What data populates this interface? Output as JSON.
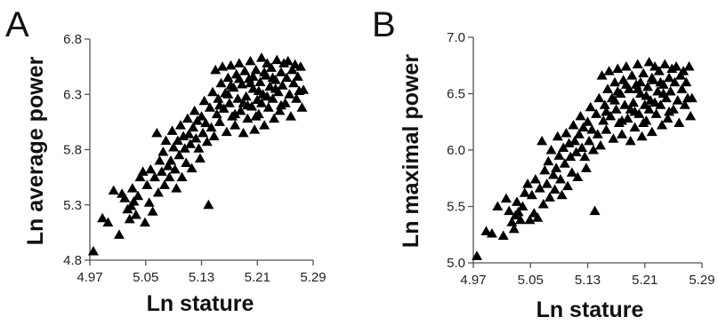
{
  "chart_data": [
    {
      "type": "scatter",
      "panel_label": "A",
      "title": "",
      "xlabel": "Ln stature",
      "ylabel": "Ln average power",
      "xlim": [
        4.97,
        5.29
      ],
      "ylim": [
        4.8,
        6.8
      ],
      "xticks": [
        "4.97",
        "5.05",
        "5.13",
        "5.21",
        "5.29"
      ],
      "yticks": [
        "4.8",
        "5.3",
        "5.8",
        "6.3",
        "6.8"
      ],
      "marker": "triangle",
      "color": "#000000",
      "grid": false,
      "points": [
        [
          4.975,
          4.88
        ],
        [
          4.988,
          5.18
        ],
        [
          4.996,
          5.14
        ],
        [
          5.004,
          5.43
        ],
        [
          5.012,
          5.03
        ],
        [
          5.016,
          5.4
        ],
        [
          5.02,
          5.36
        ],
        [
          5.024,
          5.26
        ],
        [
          5.027,
          5.17
        ],
        [
          5.029,
          5.29
        ],
        [
          5.031,
          5.45
        ],
        [
          5.033,
          5.33
        ],
        [
          5.036,
          5.21
        ],
        [
          5.039,
          5.38
        ],
        [
          5.042,
          5.55
        ],
        [
          5.046,
          5.6
        ],
        [
          5.049,
          5.14
        ],
        [
          5.052,
          5.48
        ],
        [
          5.055,
          5.32
        ],
        [
          5.057,
          5.62
        ],
        [
          5.06,
          5.24
        ],
        [
          5.063,
          5.55
        ],
        [
          5.066,
          5.95
        ],
        [
          5.068,
          5.41
        ],
        [
          5.07,
          5.7
        ],
        [
          5.073,
          5.6
        ],
        [
          5.075,
          5.78
        ],
        [
          5.077,
          5.48
        ],
        [
          5.079,
          5.88
        ],
        [
          5.082,
          5.65
        ],
        [
          5.084,
          5.55
        ],
        [
          5.086,
          5.7
        ],
        [
          5.088,
          5.97
        ],
        [
          5.09,
          5.82
        ],
        [
          5.092,
          5.62
        ],
        [
          5.094,
          5.45
        ],
        [
          5.096,
          5.88
        ],
        [
          5.098,
          5.75
        ],
        [
          5.1,
          6.02
        ],
        [
          5.102,
          5.55
        ],
        [
          5.104,
          5.92
        ],
        [
          5.106,
          5.81
        ],
        [
          5.108,
          5.68
        ],
        [
          5.11,
          6.08
        ],
        [
          5.112,
          5.94
        ],
        [
          5.114,
          5.85
        ],
        [
          5.116,
          5.63
        ],
        [
          5.118,
          6.0
        ],
        [
          5.12,
          6.15
        ],
        [
          5.122,
          5.9
        ],
        [
          5.124,
          6.06
        ],
        [
          5.126,
          5.81
        ],
        [
          5.128,
          5.72
        ],
        [
          5.13,
          6.1
        ],
        [
          5.132,
          5.95
        ],
        [
          5.134,
          6.24
        ],
        [
          5.136,
          6.04
        ],
        [
          5.138,
          5.87
        ],
        [
          5.14,
          5.3
        ],
        [
          5.142,
          6.18
        ],
        [
          5.144,
          6.0
        ],
        [
          5.146,
          6.32
        ],
        [
          5.148,
          5.92
        ],
        [
          5.15,
          6.52
        ],
        [
          5.152,
          6.12
        ],
        [
          5.154,
          6.26
        ],
        [
          5.156,
          6.05
        ],
        [
          5.158,
          6.4
        ],
        [
          5.16,
          6.55
        ],
        [
          5.162,
          6.17
        ],
        [
          5.164,
          6.31
        ],
        [
          5.166,
          5.96
        ],
        [
          5.168,
          6.45
        ],
        [
          5.17,
          6.22
        ],
        [
          5.172,
          6.56
        ],
        [
          5.174,
          6.1
        ],
        [
          5.176,
          6.36
        ],
        [
          5.178,
          6.02
        ],
        [
          5.18,
          6.48
        ],
        [
          5.182,
          6.26
        ],
        [
          5.184,
          6.58
        ],
        [
          5.186,
          6.15
        ],
        [
          5.188,
          6.39
        ],
        [
          5.19,
          5.95
        ],
        [
          5.192,
          6.51
        ],
        [
          5.194,
          6.28
        ],
        [
          5.196,
          6.08
        ],
        [
          5.198,
          6.44
        ],
        [
          5.2,
          6.6
        ],
        [
          5.202,
          6.19
        ],
        [
          5.204,
          6.35
        ],
        [
          5.206,
          5.98
        ],
        [
          5.208,
          6.52
        ],
        [
          5.21,
          6.25
        ],
        [
          5.212,
          6.12
        ],
        [
          5.214,
          6.41
        ],
        [
          5.216,
          6.63
        ],
        [
          5.218,
          6.3
        ],
        [
          5.22,
          6.02
        ],
        [
          5.222,
          6.47
        ],
        [
          5.224,
          6.58
        ],
        [
          5.226,
          6.18
        ],
        [
          5.228,
          6.37
        ],
        [
          5.23,
          6.54
        ],
        [
          5.232,
          6.26
        ],
        [
          5.234,
          6.08
        ],
        [
          5.236,
          6.43
        ],
        [
          5.238,
          6.61
        ],
        [
          5.24,
          6.32
        ],
        [
          5.242,
          6.15
        ],
        [
          5.244,
          6.5
        ],
        [
          5.246,
          6.38
        ],
        [
          5.248,
          6.58
        ],
        [
          5.25,
          6.22
        ],
        [
          5.252,
          6.45
        ],
        [
          5.254,
          6.6
        ],
        [
          5.256,
          6.3
        ],
        [
          5.258,
          6.1
        ],
        [
          5.26,
          6.52
        ],
        [
          5.262,
          6.4
        ],
        [
          5.264,
          6.57
        ],
        [
          5.266,
          6.26
        ],
        [
          5.268,
          6.46
        ],
        [
          5.27,
          6.33
        ],
        [
          5.272,
          6.55
        ],
        [
          5.274,
          6.18
        ],
        [
          5.276,
          6.34
        ],
        [
          5.156,
          6.2
        ],
        [
          5.168,
          6.3
        ],
        [
          5.178,
          6.12
        ],
        [
          5.19,
          6.22
        ],
        [
          5.2,
          6.4
        ],
        [
          5.212,
          6.33
        ],
        [
          5.224,
          6.28
        ],
        [
          5.236,
          6.35
        ],
        [
          5.184,
          6.44
        ],
        [
          5.196,
          6.2
        ],
        [
          5.208,
          6.1
        ],
        [
          5.22,
          6.5
        ],
        [
          5.232,
          6.45
        ],
        [
          5.244,
          6.2
        ],
        [
          5.172,
          6.38
        ],
        [
          5.204,
          6.46
        ],
        [
          5.216,
          6.22
        ]
      ]
    },
    {
      "type": "scatter",
      "panel_label": "B",
      "title": "",
      "xlabel": "Ln stature",
      "ylabel": "Ln maximal power",
      "xlim": [
        4.97,
        5.29
      ],
      "ylim": [
        5.0,
        7.0
      ],
      "xticks": [
        "4.97",
        "5.05",
        "5.13",
        "5.21",
        "5.29"
      ],
      "yticks": [
        "5.0",
        "5.5",
        "6.0",
        "6.5",
        "7.0"
      ],
      "marker": "triangle",
      "color": "#000000",
      "grid": false,
      "points": [
        [
          4.975,
          5.06
        ],
        [
          4.988,
          5.28
        ],
        [
          4.996,
          5.26
        ],
        [
          5.004,
          5.5
        ],
        [
          5.012,
          5.24
        ],
        [
          5.016,
          5.57
        ],
        [
          5.02,
          5.46
        ],
        [
          5.024,
          5.36
        ],
        [
          5.027,
          5.3
        ],
        [
          5.029,
          5.42
        ],
        [
          5.031,
          5.54
        ],
        [
          5.033,
          5.45
        ],
        [
          5.036,
          5.38
        ],
        [
          5.039,
          5.5
        ],
        [
          5.042,
          5.62
        ],
        [
          5.046,
          5.7
        ],
        [
          5.049,
          5.38
        ],
        [
          5.052,
          5.6
        ],
        [
          5.055,
          5.44
        ],
        [
          5.057,
          5.74
        ],
        [
          5.06,
          5.4
        ],
        [
          5.063,
          5.66
        ],
        [
          5.066,
          6.08
        ],
        [
          5.068,
          5.52
        ],
        [
          5.07,
          5.82
        ],
        [
          5.073,
          5.7
        ],
        [
          5.075,
          5.9
        ],
        [
          5.077,
          5.58
        ],
        [
          5.079,
          6.0
        ],
        [
          5.082,
          5.78
        ],
        [
          5.084,
          5.65
        ],
        [
          5.086,
          5.84
        ],
        [
          5.088,
          6.12
        ],
        [
          5.09,
          5.95
        ],
        [
          5.092,
          5.74
        ],
        [
          5.094,
          5.6
        ],
        [
          5.096,
          6.02
        ],
        [
          5.098,
          5.88
        ],
        [
          5.1,
          6.15
        ],
        [
          5.102,
          5.68
        ],
        [
          5.104,
          6.06
        ],
        [
          5.106,
          5.94
        ],
        [
          5.108,
          5.8
        ],
        [
          5.11,
          6.22
        ],
        [
          5.112,
          6.08
        ],
        [
          5.114,
          5.98
        ],
        [
          5.116,
          5.76
        ],
        [
          5.118,
          6.14
        ],
        [
          5.12,
          6.3
        ],
        [
          5.122,
          6.02
        ],
        [
          5.124,
          6.2
        ],
        [
          5.126,
          5.94
        ],
        [
          5.128,
          5.84
        ],
        [
          5.13,
          6.25
        ],
        [
          5.132,
          6.08
        ],
        [
          5.134,
          6.38
        ],
        [
          5.136,
          6.18
        ],
        [
          5.138,
          6.0
        ],
        [
          5.14,
          5.46
        ],
        [
          5.142,
          6.32
        ],
        [
          5.144,
          6.14
        ],
        [
          5.146,
          6.46
        ],
        [
          5.148,
          6.04
        ],
        [
          5.15,
          6.66
        ],
        [
          5.152,
          6.26
        ],
        [
          5.154,
          6.4
        ],
        [
          5.156,
          6.18
        ],
        [
          5.158,
          6.54
        ],
        [
          5.16,
          6.7
        ],
        [
          5.162,
          6.3
        ],
        [
          5.164,
          6.46
        ],
        [
          5.166,
          6.1
        ],
        [
          5.168,
          6.6
        ],
        [
          5.17,
          6.36
        ],
        [
          5.172,
          6.72
        ],
        [
          5.174,
          6.24
        ],
        [
          5.176,
          6.5
        ],
        [
          5.178,
          6.14
        ],
        [
          5.18,
          6.62
        ],
        [
          5.182,
          6.4
        ],
        [
          5.184,
          6.74
        ],
        [
          5.186,
          6.28
        ],
        [
          5.188,
          6.54
        ],
        [
          5.19,
          6.08
        ],
        [
          5.192,
          6.66
        ],
        [
          5.194,
          6.42
        ],
        [
          5.196,
          6.2
        ],
        [
          5.198,
          6.58
        ],
        [
          5.2,
          6.76
        ],
        [
          5.202,
          6.32
        ],
        [
          5.204,
          6.5
        ],
        [
          5.206,
          6.12
        ],
        [
          5.208,
          6.68
        ],
        [
          5.21,
          6.4
        ],
        [
          5.212,
          6.26
        ],
        [
          5.214,
          6.56
        ],
        [
          5.216,
          6.78
        ],
        [
          5.218,
          6.44
        ],
        [
          5.22,
          6.16
        ],
        [
          5.222,
          6.62
        ],
        [
          5.224,
          6.74
        ],
        [
          5.226,
          6.32
        ],
        [
          5.228,
          6.52
        ],
        [
          5.23,
          6.7
        ],
        [
          5.232,
          6.4
        ],
        [
          5.234,
          6.22
        ],
        [
          5.236,
          6.58
        ],
        [
          5.238,
          6.76
        ],
        [
          5.24,
          6.46
        ],
        [
          5.242,
          6.28
        ],
        [
          5.244,
          6.64
        ],
        [
          5.246,
          6.52
        ],
        [
          5.248,
          6.72
        ],
        [
          5.25,
          6.36
        ],
        [
          5.252,
          6.6
        ],
        [
          5.254,
          6.74
        ],
        [
          5.256,
          6.44
        ],
        [
          5.258,
          6.24
        ],
        [
          5.26,
          6.66
        ],
        [
          5.262,
          6.54
        ],
        [
          5.264,
          6.7
        ],
        [
          5.266,
          6.4
        ],
        [
          5.268,
          6.6
        ],
        [
          5.27,
          6.46
        ],
        [
          5.272,
          6.74
        ],
        [
          5.274,
          6.3
        ],
        [
          5.276,
          6.46
        ],
        [
          5.156,
          6.34
        ],
        [
          5.168,
          6.44
        ],
        [
          5.178,
          6.26
        ],
        [
          5.19,
          6.36
        ],
        [
          5.2,
          6.54
        ],
        [
          5.212,
          6.48
        ],
        [
          5.224,
          6.42
        ],
        [
          5.236,
          6.5
        ],
        [
          5.184,
          6.58
        ],
        [
          5.196,
          6.34
        ],
        [
          5.208,
          6.24
        ],
        [
          5.22,
          6.64
        ],
        [
          5.232,
          6.6
        ],
        [
          5.244,
          6.34
        ],
        [
          5.172,
          6.52
        ],
        [
          5.204,
          6.6
        ],
        [
          5.216,
          6.36
        ]
      ]
    }
  ]
}
